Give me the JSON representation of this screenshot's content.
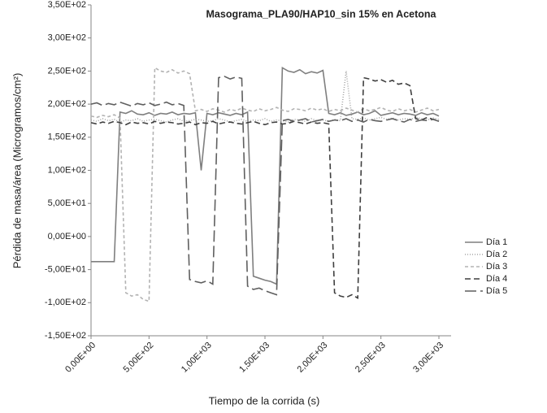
{
  "chart_data": {
    "type": "line",
    "title": "Masograma_PLA90/HAP10_sin 15% en Acetona",
    "x_label": "Tiempo de la corrida (s)",
    "y_label": "Pérdida de masa/área (Microgramos/cm²)",
    "x": [
      0,
      50,
      100,
      150,
      200,
      250,
      300,
      350,
      400,
      450,
      500,
      550,
      600,
      650,
      700,
      750,
      800,
      850,
      900,
      950,
      1000,
      1050,
      1100,
      1150,
      1200,
      1250,
      1300,
      1350,
      1400,
      1450,
      1500,
      1550,
      1600,
      1650,
      1700,
      1750,
      1800,
      1850,
      1900,
      1950,
      2000,
      2050,
      2100,
      2150,
      2200,
      2250,
      2300,
      2350,
      2400,
      2450,
      2500,
      2550,
      2600,
      2650,
      2700,
      2750,
      2800,
      2850,
      2900,
      2950,
      3000
    ],
    "series": [
      {
        "name": "Día 1",
        "color": "#7f7f7f",
        "dash": "none",
        "values": [
          -38,
          -38,
          -38,
          -38,
          -38,
          188,
          186,
          190,
          185,
          184,
          187,
          183,
          186,
          185,
          188,
          184,
          186,
          185,
          187,
          100,
          186,
          184,
          187,
          185,
          183,
          186,
          184,
          188,
          -60,
          -63,
          -66,
          -68,
          -72,
          255,
          250,
          248,
          252,
          246,
          249,
          247,
          251,
          186,
          184,
          187,
          183,
          185,
          188,
          184,
          186,
          190,
          183,
          185,
          187,
          184,
          186,
          185,
          183,
          187,
          184,
          186,
          182
        ]
      },
      {
        "name": "Día 2",
        "color": "#a6a6a6",
        "dash": "1 2",
        "values": [
          176,
          174,
          178,
          175,
          177,
          173,
          176,
          175,
          178,
          174,
          176,
          177,
          175,
          173,
          176,
          178,
          174,
          175,
          177,
          176,
          174,
          175,
          178,
          176,
          173,
          175,
          177,
          174,
          176,
          175,
          178,
          174,
          176,
          175,
          173,
          177,
          176,
          174,
          178,
          175,
          176,
          174,
          177,
          175,
          250,
          178,
          177,
          179,
          176,
          178,
          180,
          177,
          179,
          176,
          178,
          177,
          180,
          178,
          176,
          179,
          177
        ]
      },
      {
        "name": "Día 3",
        "color": "#b3b3b3",
        "dash": "4 3",
        "values": [
          182,
          180,
          183,
          181,
          184,
          179,
          -85,
          -90,
          -88,
          -95,
          -98,
          255,
          250,
          248,
          252,
          247,
          250,
          246,
          190,
          192,
          189,
          193,
          191,
          188,
          192,
          190,
          194,
          191,
          189,
          193,
          190,
          192,
          195,
          191,
          189,
          193,
          192,
          190,
          194,
          191,
          193,
          189,
          192,
          190,
          194,
          191,
          188,
          193,
          190,
          192,
          195,
          191,
          189,
          193,
          190,
          192,
          188,
          191,
          194,
          190,
          192
        ]
      },
      {
        "name": "Día 4",
        "color": "#3f3f3f",
        "dash": "7 4",
        "values": [
          172,
          170,
          173,
          171,
          174,
          172,
          169,
          173,
          171,
          172,
          170,
          174,
          171,
          173,
          172,
          170,
          171,
          173,
          169,
          172,
          171,
          174,
          170,
          172,
          173,
          171,
          170,
          172,
          174,
          171,
          169,
          172,
          173,
          170,
          171,
          174,
          172,
          170,
          173,
          171,
          172,
          170,
          -85,
          -90,
          -92,
          -88,
          -93,
          240,
          238,
          235,
          237,
          233,
          236,
          230,
          232,
          228,
          178,
          176,
          180,
          177,
          175
        ]
      },
      {
        "name": "Día 5",
        "color": "#5f5f5f",
        "dash": "14 5",
        "values": [
          200,
          202,
          198,
          201,
          199,
          203,
          200,
          197,
          201,
          199,
          202,
          198,
          200,
          203,
          199,
          201,
          198,
          -65,
          -68,
          -70,
          -67,
          -72,
          240,
          242,
          238,
          241,
          239,
          -75,
          -80,
          -78,
          -82,
          -85,
          -88,
          175,
          177,
          174,
          176,
          178,
          173,
          175,
          177,
          174,
          176,
          175,
          178,
          174,
          176,
          173,
          177,
          175,
          174,
          176,
          178,
          175,
          173,
          177,
          174,
          176,
          175,
          177,
          174
        ]
      }
    ],
    "xlim": [
      0,
      3000
    ],
    "xticks": [
      {
        "value": 0,
        "label": "0,00E+00"
      },
      {
        "value": 500,
        "label": "5,00E+02"
      },
      {
        "value": 1000,
        "label": "1,00E+03"
      },
      {
        "value": 1500,
        "label": "1,50E+03"
      },
      {
        "value": 2000,
        "label": "2,00E+03"
      },
      {
        "value": 2500,
        "label": "2,50E+03"
      },
      {
        "value": 3000,
        "label": "3,00E+03"
      }
    ],
    "ylim": [
      -150,
      350
    ],
    "yticks": [
      {
        "value": -150,
        "label": "-1,50E+02"
      },
      {
        "value": -100,
        "label": "-1,00E+02"
      },
      {
        "value": -50,
        "label": "-5,00E+01"
      },
      {
        "value": 0,
        "label": "0,00E+00"
      },
      {
        "value": 50,
        "label": "5,00E+01"
      },
      {
        "value": 100,
        "label": "1,00E+02"
      },
      {
        "value": 150,
        "label": "1,50E+02"
      },
      {
        "value": 200,
        "label": "2,00E+02"
      },
      {
        "value": 250,
        "label": "2,50E+02"
      },
      {
        "value": 300,
        "label": "3,00E+02"
      },
      {
        "value": 350,
        "label": "3,50E+02"
      }
    ],
    "legend": "right"
  }
}
